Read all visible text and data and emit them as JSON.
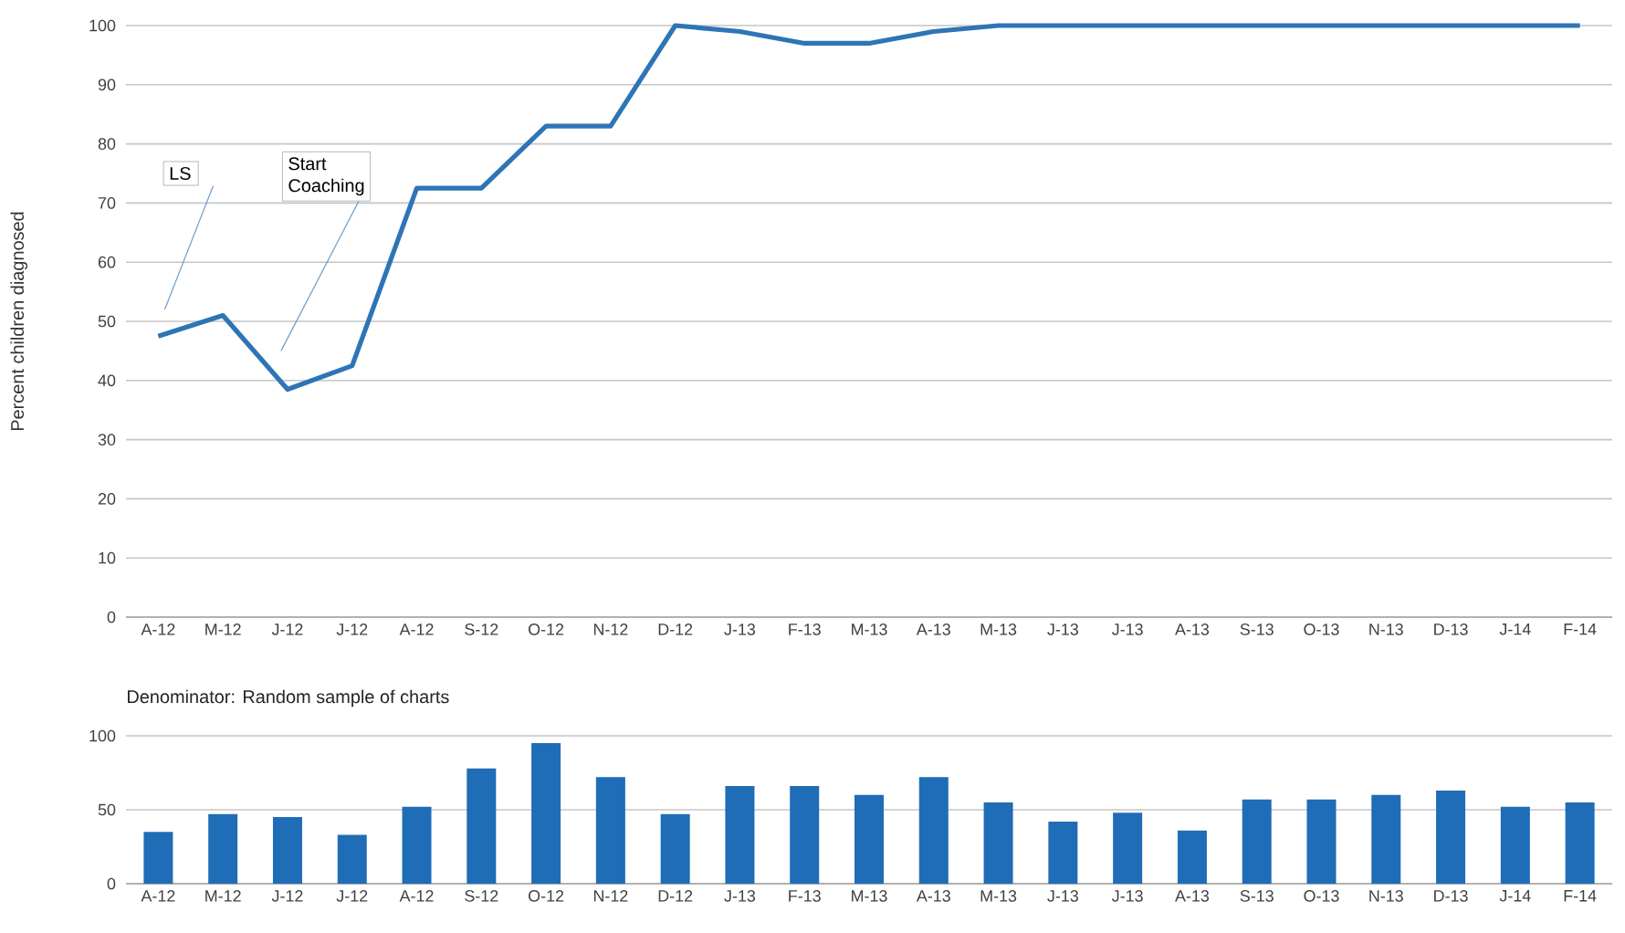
{
  "chart_data": [
    {
      "type": "line",
      "ylabel": "Percent children diagnosed",
      "categories": [
        "A-12",
        "M-12",
        "J-12",
        "J-12",
        "A-12",
        "S-12",
        "O-12",
        "N-12",
        "D-12",
        "J-13",
        "F-13",
        "M-13",
        "A-13",
        "M-13",
        "J-13",
        "J-13",
        "A-13",
        "S-13",
        "O-13",
        "N-13",
        "D-13",
        "J-14",
        "F-14"
      ],
      "values": [
        47.5,
        51,
        38.5,
        42.5,
        72.5,
        72.5,
        83,
        83,
        100,
        99,
        97,
        97,
        99,
        100,
        100,
        100,
        100,
        100,
        100,
        100,
        100,
        100,
        100
      ],
      "color": "#2e75b6",
      "ylim": [
        0,
        100
      ],
      "yticks": [
        0,
        10,
        20,
        30,
        40,
        50,
        60,
        70,
        80,
        90,
        100
      ],
      "grid": "y",
      "marker": "none",
      "line_style": "solid",
      "annotations": [
        "LS",
        "Start Coaching"
      ]
    },
    {
      "type": "bar",
      "title": "Denominator: Random sample of charts",
      "categories": [
        "A-12",
        "M-12",
        "J-12",
        "J-12",
        "A-12",
        "S-12",
        "O-12",
        "N-12",
        "D-12",
        "J-13",
        "F-13",
        "M-13",
        "A-13",
        "M-13",
        "J-13",
        "J-13",
        "A-13",
        "S-13",
        "O-13",
        "N-13",
        "D-13",
        "J-14",
        "F-14"
      ],
      "values": [
        35,
        47,
        45,
        33,
        52,
        78,
        95,
        72,
        47,
        66,
        66,
        60,
        72,
        55,
        42,
        48,
        36,
        57,
        57,
        60,
        63,
        52,
        55
      ],
      "color": "#1f6cb7",
      "ylim": [
        0,
        100
      ],
      "yticks": [
        0,
        50,
        100
      ],
      "grid": "y"
    }
  ]
}
